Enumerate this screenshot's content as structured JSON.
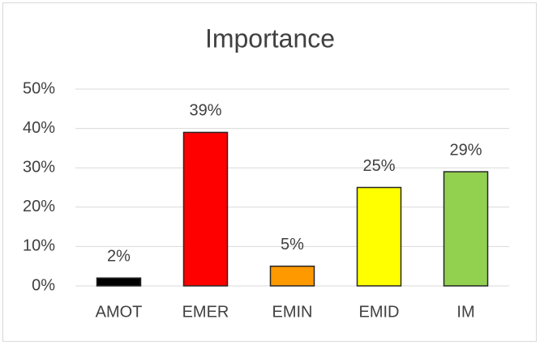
{
  "chart_data": {
    "type": "bar",
    "title": "Importance",
    "categories": [
      "AMOT",
      "EMER",
      "EMIN",
      "EMID",
      "IM"
    ],
    "values": [
      2,
      39,
      5,
      25,
      29
    ],
    "value_labels": [
      "2%",
      "39%",
      "5%",
      "25%",
      "29%"
    ],
    "colors": [
      "#000000",
      "#ff0000",
      "#ff9900",
      "#ffff00",
      "#92d050"
    ],
    "ylim": [
      0,
      50
    ],
    "yticks": [
      {
        "value": 0,
        "label": "0%"
      },
      {
        "value": 10,
        "label": "10%"
      },
      {
        "value": 20,
        "label": "20%"
      },
      {
        "value": 30,
        "label": "30%"
      },
      {
        "value": 40,
        "label": "40%"
      },
      {
        "value": 50,
        "label": "50%"
      }
    ],
    "grid": true
  }
}
